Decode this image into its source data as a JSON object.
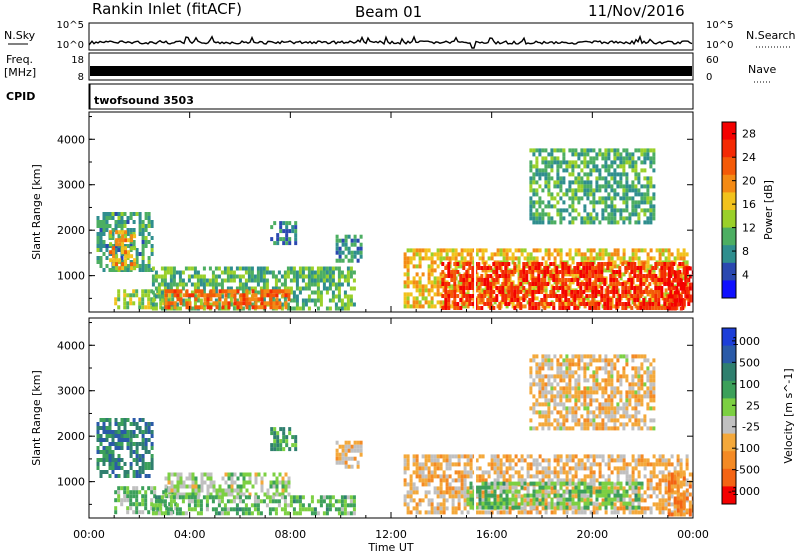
{
  "header": {
    "station": "Rankin Inlet (fitACF)",
    "beam": "Beam 01",
    "date": "11/Nov/2016"
  },
  "strip_nsky": {
    "left_label": "N.Sky",
    "right_label": "N.Search",
    "ticks_left": [
      "10^5",
      "10^0"
    ],
    "ticks_right": [
      "10^5",
      "10^0"
    ]
  },
  "strip_freq": {
    "left_label_1": "Freq.",
    "left_label_2": "[MHz]",
    "right_label": "Nave",
    "ticks_left": [
      "18",
      "8"
    ],
    "ticks_right": [
      "60",
      "0"
    ]
  },
  "strip_cpid": {
    "left_label": "CPID",
    "program": "twofsound 3503"
  },
  "colors": {
    "power_palette": [
      "#1010ff",
      "#2a48b0",
      "#2f8e8e",
      "#4cae62",
      "#9ad02a",
      "#f2c21c",
      "#f48a14",
      "#f45a08",
      "#f42a04",
      "#f40000"
    ],
    "velocity_palette": [
      "#1c3ed8",
      "#2a5aa8",
      "#2f7f6e",
      "#3ca05a",
      "#7cd042",
      "#c0c0c0",
      "#f4a83a",
      "#f48a24",
      "#f46414",
      "#f40000"
    ]
  },
  "chart_data": [
    {
      "type": "heatmap",
      "name": "power",
      "ylabel": "Slant Range [km]",
      "yticks": [
        "1000",
        "2000",
        "3000",
        "4000"
      ],
      "ylim": [
        200,
        4600
      ],
      "xticks": [
        "00:00",
        "04:00",
        "08:00",
        "12:00",
        "16:00",
        "20:00",
        "00:00"
      ],
      "xlim_hours": [
        0,
        24
      ],
      "colorbar": {
        "label": "Power [dB]",
        "ticks": [
          "4",
          "8",
          "12",
          "16",
          "20",
          "24",
          "28"
        ],
        "range": [
          0,
          30
        ]
      },
      "regions": [
        {
          "t0": 0.3,
          "t1": 2.5,
          "r0": 1100,
          "r1": 2400,
          "value": 9
        },
        {
          "t0": 0.8,
          "t1": 1.8,
          "r0": 1200,
          "r1": 2000,
          "value": 18
        },
        {
          "t0": 1.0,
          "t1": 3.5,
          "r0": 300,
          "r1": 700,
          "value": 14
        },
        {
          "t0": 2.5,
          "t1": 10.5,
          "r0": 300,
          "r1": 1200,
          "value": 11
        },
        {
          "t0": 3.0,
          "t1": 8.0,
          "r0": 300,
          "r1": 700,
          "value": 22
        },
        {
          "t0": 7.2,
          "t1": 8.2,
          "r0": 1700,
          "r1": 2200,
          "value": 8
        },
        {
          "t0": 9.8,
          "t1": 10.8,
          "r0": 1300,
          "r1": 1900,
          "value": 8
        },
        {
          "t0": 12.5,
          "t1": 23.8,
          "r0": 300,
          "r1": 1600,
          "value": 17
        },
        {
          "t0": 14.0,
          "t1": 23.8,
          "r0": 300,
          "r1": 1300,
          "value": 26
        },
        {
          "t0": 17.5,
          "t1": 22.5,
          "r0": 2200,
          "r1": 3800,
          "value": 10
        },
        {
          "t0": 23.0,
          "t1": 24.0,
          "r0": 300,
          "r1": 1200,
          "value": 28
        }
      ]
    },
    {
      "type": "heatmap",
      "name": "velocity",
      "ylabel": "Slant Range [km]",
      "yticks": [
        "1000",
        "2000",
        "3000",
        "4000"
      ],
      "ylim": [
        200,
        4600
      ],
      "xticks": [
        "00:00",
        "04:00",
        "08:00",
        "12:00",
        "16:00",
        "20:00",
        "00:00"
      ],
      "xlim_hours": [
        0,
        24
      ],
      "xlabel": "Time UT",
      "colorbar": {
        "label": "Velocity [m s^-1]",
        "ticks": [
          "1000",
          "500",
          "100",
          "25",
          "-25",
          "-100",
          "-500",
          "-1000"
        ],
        "range": [
          -1200,
          1200
        ]
      },
      "regions": [
        {
          "t0": 0.3,
          "t1": 2.5,
          "r0": 1100,
          "r1": 2400,
          "value": 600
        },
        {
          "t0": 1.0,
          "t1": 3.5,
          "r0": 300,
          "r1": 900,
          "value": 150
        },
        {
          "t0": 3.0,
          "t1": 8.0,
          "r0": 700,
          "r1": 1200,
          "value": 0
        },
        {
          "t0": 2.5,
          "t1": 10.5,
          "r0": 300,
          "r1": 700,
          "value": 200
        },
        {
          "t0": 7.2,
          "t1": 8.2,
          "r0": 1700,
          "r1": 2200,
          "value": 400
        },
        {
          "t0": 9.8,
          "t1": 10.8,
          "r0": 1300,
          "r1": 1900,
          "value": -300
        },
        {
          "t0": 12.5,
          "t1": 23.8,
          "r0": 300,
          "r1": 1600,
          "value": -300
        },
        {
          "t0": 15.0,
          "t1": 22.0,
          "r0": 400,
          "r1": 1000,
          "value": 200
        },
        {
          "t0": 17.5,
          "t1": 22.5,
          "r0": 2200,
          "r1": 3800,
          "value": -250
        },
        {
          "t0": 23.0,
          "t1": 24.0,
          "r0": 300,
          "r1": 1200,
          "value": -600
        }
      ]
    }
  ]
}
